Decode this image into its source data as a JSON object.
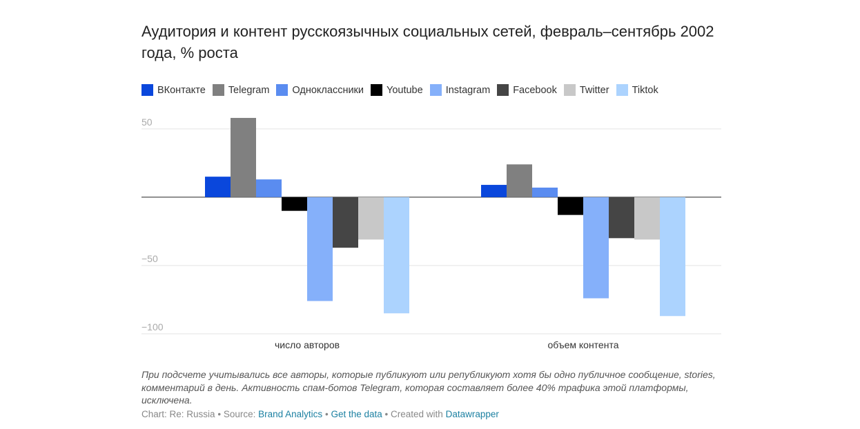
{
  "chart_data": {
    "type": "bar",
    "title": "Аудитория и контент русскоязычных социальных сетей, февраль–сентябрь 2002 года, % роста",
    "categories": [
      "число авторов",
      "объем контента"
    ],
    "series": [
      {
        "name": "ВКонтакте",
        "color": "#0a47dc",
        "values": [
          15,
          9
        ]
      },
      {
        "name": "Telegram",
        "color": "#808080",
        "values": [
          58,
          24
        ]
      },
      {
        "name": "Одноклассники",
        "color": "#5a8cf0",
        "values": [
          13,
          7
        ]
      },
      {
        "name": "Youtube",
        "color": "#000000",
        "values": [
          -10,
          -13
        ]
      },
      {
        "name": "Instagram",
        "color": "#85b0fa",
        "values": [
          -76,
          -74
        ]
      },
      {
        "name": "Facebook",
        "color": "#454545",
        "values": [
          -37,
          -30
        ]
      },
      {
        "name": "Twitter",
        "color": "#c8c8c8",
        "values": [
          -31,
          -31
        ]
      },
      {
        "name": "Tiktok",
        "color": "#acd3fe",
        "values": [
          -85,
          -87
        ]
      }
    ],
    "ylim": [
      -100,
      60
    ],
    "yticks": [
      {
        "value": 50,
        "label": "50"
      },
      {
        "value": -50,
        "label": "−50"
      },
      {
        "value": -100,
        "label": "−100"
      }
    ],
    "grid": true,
    "notes": "При подсчете учитывались все авторы, которые публикуют или републикуют хотя бы одно публичное сообщение, stories, комментарий в день. Активность спам-ботов Telegram, которая составляет более 40% трафика этой платформы, исключена.",
    "source": {
      "chart": "Chart: Re: Russia",
      "sep": "•",
      "source_label": "Source:",
      "source_link": "Brand Analytics",
      "get_data": "Get the data",
      "created": "Created with",
      "tool": "Datawrapper"
    }
  }
}
